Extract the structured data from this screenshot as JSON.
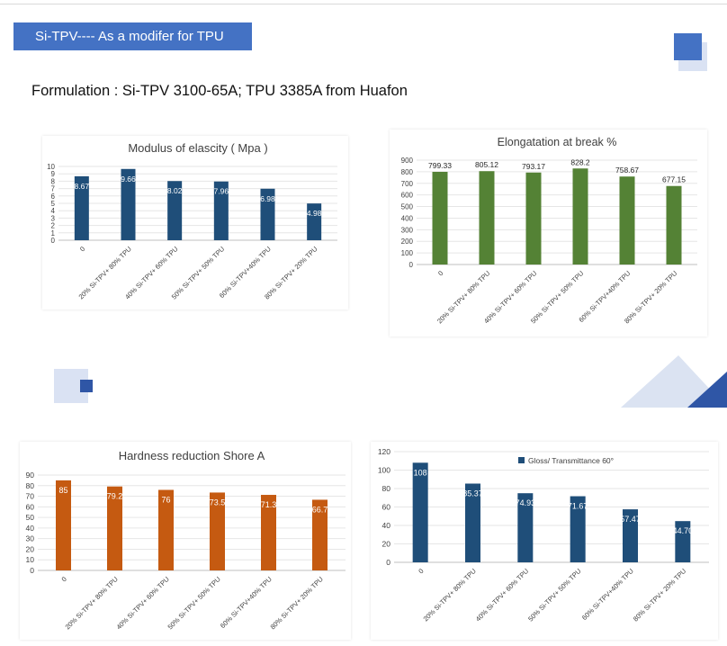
{
  "banner": {
    "text": "Si-TPV---- As a modifer for TPU"
  },
  "heading": {
    "text": "Formulation : Si-TPV 3100-65A; TPU 3385A from Huafon"
  },
  "colors": {
    "banner": "#4472c4",
    "deco_dark": "#4472c4",
    "deco_light": "#dae2f3",
    "tri_light": "#dbe3f2",
    "tri_dark": "#2f56a6"
  },
  "chart_data": [
    {
      "id": "modulus",
      "type": "bar",
      "title": "Modulus of elascity ( Mpa )",
      "categories": [
        "0",
        "20% Si-TPV+ 80% TPU",
        "40% Si-TPV+ 60% TPU",
        "50% Si-TPV+ 50% TPU",
        "60% Si-TPV+40% TPU",
        "80% Si-TPV+ 20% TPU"
      ],
      "values": [
        8.67,
        9.66,
        8.02,
        7.96,
        6.98,
        4.98
      ],
      "labels": [
        "8.67",
        "9.66",
        "8.02",
        "7.96",
        "6.98",
        "4.98"
      ],
      "ylim": [
        0,
        10
      ],
      "yticks": [
        "0",
        "1",
        "2",
        "3",
        "4",
        "5",
        "6",
        "7",
        "8",
        "9",
        "10"
      ],
      "color": "#1f4e79",
      "label_inside": true,
      "legend": ""
    },
    {
      "id": "elongation",
      "type": "bar",
      "title": "Elongatation at break %",
      "categories": [
        "0",
        "20% Si-TPV+ 80% TPU",
        "40% Si-TPV+ 60% TPU",
        "50% Si-TPV+ 50% TPU",
        "60% Si-TPV+40% TPU",
        "80% Si-TPV+ 20% TPU"
      ],
      "values": [
        799.33,
        805.12,
        793.17,
        828.2,
        758.67,
        677.15
      ],
      "labels": [
        "799.33",
        "805.12",
        "793.17",
        "828.2",
        "758.67",
        "677.15"
      ],
      "ylim": [
        0,
        900
      ],
      "yticks": [
        "0",
        "100",
        "200",
        "300",
        "400",
        "500",
        "600",
        "700",
        "800",
        "900"
      ],
      "color": "#548235",
      "label_inside": false,
      "legend": ""
    },
    {
      "id": "hardness",
      "type": "bar",
      "title": "Hardness reduction  Shore A",
      "categories": [
        "0",
        "20% Si-TPV+ 80% TPU",
        "40% Si-TPV+ 60% TPU",
        "50% Si-TPV+ 50% TPU",
        "60% Si-TPV+40% TPU",
        "80% Si-TPV+ 20% TPU"
      ],
      "values": [
        85,
        79.2,
        76,
        73.5,
        71.3,
        66.7
      ],
      "labels": [
        "85",
        "79.2",
        "76",
        "73.5",
        "71.3",
        "66.7"
      ],
      "ylim": [
        0,
        90
      ],
      "yticks": [
        "0",
        "10",
        "20",
        "30",
        "40",
        "50",
        "60",
        "70",
        "80",
        "90"
      ],
      "color": "#c55a11",
      "label_inside": true,
      "legend": ""
    },
    {
      "id": "gloss",
      "type": "bar",
      "title": "",
      "categories": [
        "0",
        "20% Si-TPV+ 80% TPU",
        "40% Si-TPV+ 60% TPU",
        "50% Si-TPV+ 50% TPU",
        "60% Si-TPV+40% TPU",
        "80% Si-TPV+ 20% TPU"
      ],
      "values": [
        108,
        85.37,
        74.93,
        71.67,
        57.47,
        44.7
      ],
      "labels": [
        "108",
        "85.37",
        "74.93",
        "71.67",
        "57.47",
        "44.70"
      ],
      "ylim": [
        0,
        120
      ],
      "yticks": [
        "0",
        "20",
        "40",
        "60",
        "80",
        "100",
        "120"
      ],
      "color": "#1f4e79",
      "label_inside": true,
      "legend": "Gloss/ Transmittance 60°"
    }
  ]
}
